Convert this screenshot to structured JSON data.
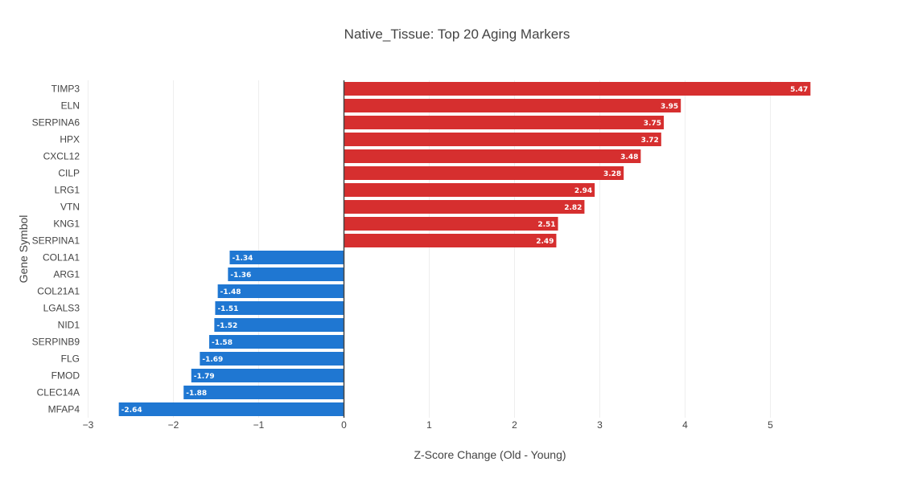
{
  "chart_data": {
    "type": "bar",
    "orientation": "horizontal",
    "title": "Native_Tissue: Top 20 Aging Markers",
    "xlabel": "Z-Score Change (Old - Young)",
    "ylabel": "Gene Symbol",
    "xlim": [
      -3,
      5.65
    ],
    "xticks": [
      -3,
      -2,
      -1,
      0,
      1,
      2,
      3,
      4,
      5
    ],
    "xtick_labels": [
      "−3",
      "−2",
      "−1",
      "0",
      "1",
      "2",
      "3",
      "4",
      "5"
    ],
    "grid": true,
    "categories": [
      "TIMP3",
      "ELN",
      "SERPINA6",
      "HPX",
      "CXCL12",
      "CILP",
      "LRG1",
      "VTN",
      "KNG1",
      "SERPINA1",
      "COL1A1",
      "ARG1",
      "COL21A1",
      "LGALS3",
      "NID1",
      "SERPINB9",
      "FLG",
      "FMOD",
      "CLEC14A",
      "MFAP4"
    ],
    "values": [
      5.47,
      3.95,
      3.75,
      3.72,
      3.48,
      3.28,
      2.94,
      2.82,
      2.51,
      2.49,
      -1.34,
      -1.36,
      -1.48,
      -1.51,
      -1.52,
      -1.58,
      -1.69,
      -1.79,
      -1.88,
      -2.64
    ],
    "value_labels": [
      "5.47",
      "3.95",
      "3.75",
      "3.72",
      "3.48",
      "3.28",
      "2.94",
      "2.82",
      "2.51",
      "2.49",
      "-1.34",
      "-1.36",
      "-1.48",
      "-1.51",
      "-1.52",
      "-1.58",
      "-1.69",
      "-1.79",
      "-1.88",
      "-2.64"
    ],
    "colors": {
      "positive": "#d62f2f",
      "negative": "#1f77d2"
    }
  }
}
